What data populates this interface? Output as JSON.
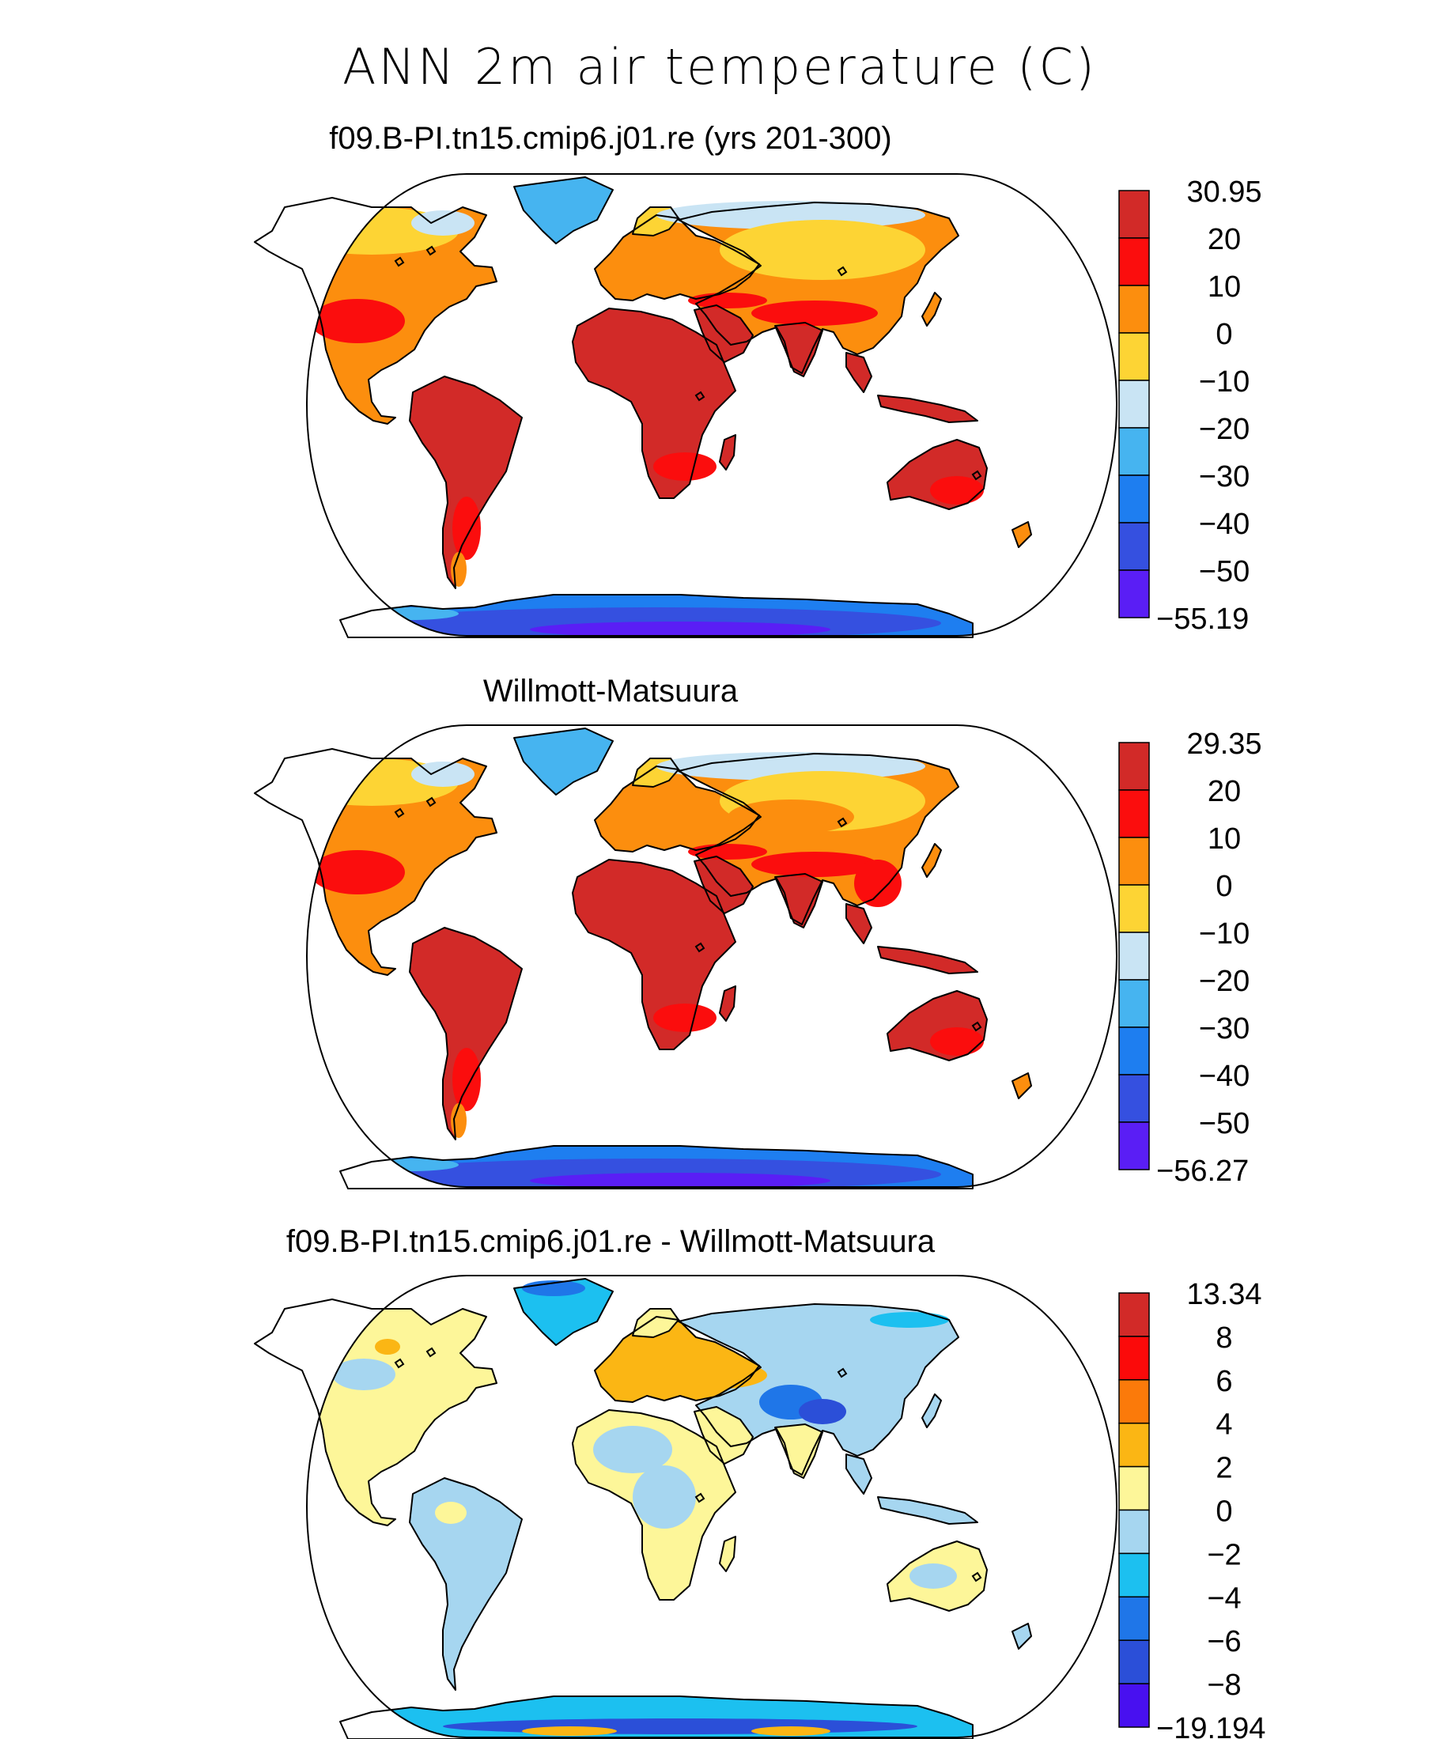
{
  "figure": {
    "title": "ANN 2m air temperature (C)"
  },
  "colors": {
    "coastline": "#000000",
    "map_border": "#000000",
    "model_obs_palette": [
      "#5a1ef5",
      "#3550e0",
      "#1e7ef0",
      "#46b4f0",
      "#c9e4f4",
      "#fdd434",
      "#fc8e0e",
      "#fb0d0d",
      "#d22a28"
    ],
    "diff_palette": [
      "#4810f0",
      "#2b4fd8",
      "#1f76e8",
      "#1cc0f0",
      "#a6d6f0",
      "#fdf699",
      "#fbb614",
      "#fb7a0a",
      "#fb0a0a",
      "#d22a28"
    ]
  },
  "panels": [
    {
      "id": "model",
      "title": "f09.B-PI.tn15.cmip6.j01.re (yrs 201-300)",
      "colorbar_labels": [
        "30.95",
        "20",
        "10",
        "0",
        "−10",
        "−20",
        "−30",
        "−40",
        "−50",
        "−55.19"
      ],
      "field_max": 30.95,
      "field_min": -55.19
    },
    {
      "id": "obs",
      "title": "Willmott-Matsuura",
      "colorbar_labels": [
        "29.35",
        "20",
        "10",
        "0",
        "−10",
        "−20",
        "−30",
        "−40",
        "−50",
        "−56.27"
      ],
      "field_max": 29.35,
      "field_min": -56.27
    },
    {
      "id": "diff",
      "title": "f09.B-PI.tn15.cmip6.j01.re - Willmott-Matsuura",
      "colorbar_labels": [
        "13.34",
        "8",
        "6",
        "4",
        "2",
        "0",
        "−2",
        "−4",
        "−6",
        "−8",
        "−19.194"
      ],
      "field_max": 13.34,
      "field_min": -19.194
    }
  ]
}
